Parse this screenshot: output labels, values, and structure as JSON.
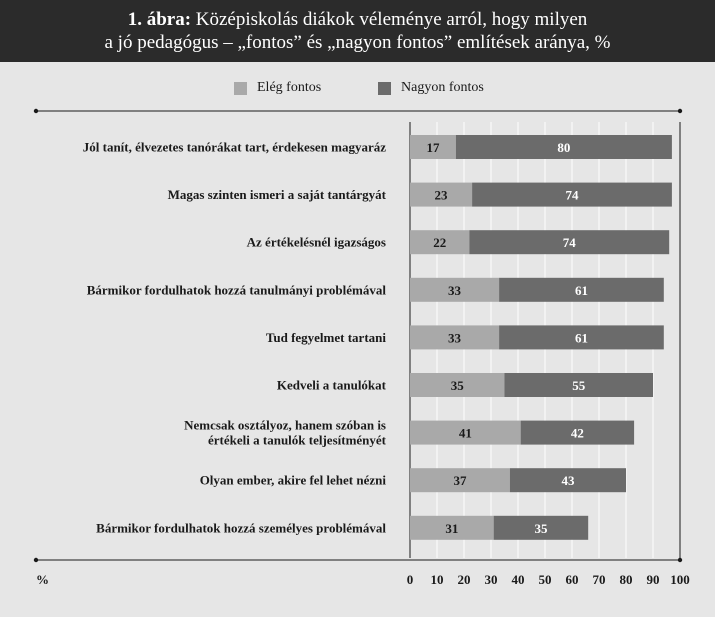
{
  "header": {
    "title_bold": "1. ábra:",
    "title_rest_line1": " Középiskolás diákok véleménye arról, hogy milyen",
    "title_line2": "a jó pedagógus – „fontos” és „nagyon fontos” említések aránya, %"
  },
  "colors": {
    "header_bg": "#2b2b2b",
    "panel_bg": "#e6e6e6",
    "series_light": "#a9a9a9",
    "series_dark": "#6b6b6b",
    "text": "#1a1a1a"
  },
  "chart_data": {
    "type": "bar",
    "orientation": "horizontal",
    "stacked": true,
    "categories": [
      "Jól tanít, élvezetes tanórákat tart, érdekesen magyaráz",
      "Magas szinten ismeri a saját tantárgyát",
      "Az értékelésnél igazságos",
      "Bármikor fordulhatok hozzá tanulmányi problémával",
      "Tud fegyelmet tartani",
      "Kedveli a tanulókat",
      [
        "Nemcsak osztályoz, hanem szóban is",
        "értékeli a tanulók teljesítményét"
      ],
      "Olyan ember, akire fel lehet nézni",
      "Bármikor fordulhatok hozzá személyes problémával"
    ],
    "series": [
      {
        "name": "Elég fontos",
        "values": [
          17,
          23,
          22,
          33,
          33,
          35,
          41,
          37,
          31
        ]
      },
      {
        "name": "Nagyon fontos",
        "values": [
          80,
          74,
          74,
          61,
          61,
          55,
          42,
          43,
          35
        ]
      }
    ],
    "xlabel": "%",
    "xlim": [
      0,
      100
    ],
    "xticks": [
      0,
      10,
      20,
      30,
      40,
      50,
      60,
      70,
      80,
      90,
      100
    ],
    "legend_position": "top-center",
    "grid": "vertical"
  }
}
